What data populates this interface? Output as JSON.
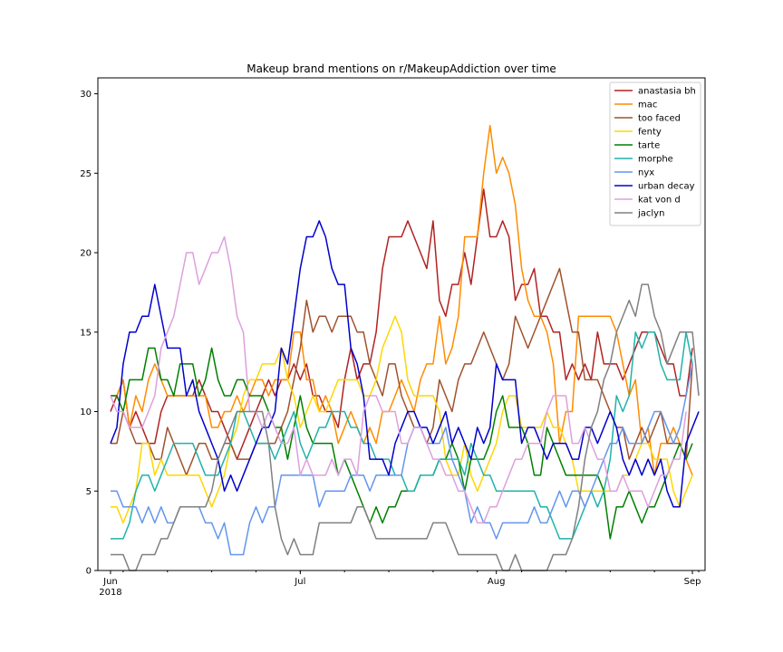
{
  "chart_data": {
    "type": "line",
    "title": "Makeup brand mentions on r/MakeupAddiction over time",
    "xlabel": "",
    "ylabel": "",
    "ylim": [
      0,
      31
    ],
    "xlim": [
      "2018-05-30",
      "2018-09-03"
    ],
    "x_start": "2018-06-01",
    "x_step_days": 1,
    "x_ticks": [
      {
        "date": "2018-06-01",
        "label": "Jun",
        "sublabel": "2018"
      },
      {
        "date": "2018-07-01",
        "label": "Jul",
        "sublabel": ""
      },
      {
        "date": "2018-08-01",
        "label": "Aug",
        "sublabel": ""
      },
      {
        "date": "2018-09-01",
        "label": "Sep",
        "sublabel": ""
      }
    ],
    "y_ticks": [
      0,
      5,
      10,
      15,
      20,
      25,
      30
    ],
    "grid": false,
    "legend_position": "top-right",
    "series": [
      {
        "name": "anastasia bh",
        "color": "#b22222",
        "values": [
          10,
          11,
          12,
          9,
          10,
          9,
          8,
          8,
          10,
          11,
          11,
          11,
          11,
          11,
          12,
          11,
          10,
          10,
          9,
          8,
          7,
          8,
          9,
          10,
          11,
          12,
          11,
          12,
          12,
          13,
          12,
          13,
          11,
          11,
          10,
          10,
          9,
          12,
          14,
          12,
          13,
          13,
          15,
          19,
          21,
          21,
          21,
          22,
          21,
          20,
          19,
          22,
          17,
          16,
          18,
          18,
          20,
          18,
          21,
          24,
          21,
          21,
          22,
          21,
          17,
          18,
          18,
          19,
          16,
          16,
          15,
          15,
          12,
          13,
          12,
          13,
          12,
          15,
          13,
          13,
          13,
          12,
          13,
          14,
          15,
          15,
          15,
          14,
          13,
          13,
          11,
          11,
          14
        ]
      },
      {
        "name": "mac",
        "color": "#ff8c00",
        "values": [
          11,
          11,
          12,
          9,
          11,
          10,
          12,
          13,
          12,
          11,
          11,
          11,
          11,
          11,
          11,
          11,
          9,
          9,
          10,
          10,
          11,
          10,
          11,
          12,
          12,
          11,
          12,
          12,
          12,
          15,
          15,
          12,
          12,
          10,
          11,
          10,
          8,
          9,
          10,
          9,
          8,
          9,
          8,
          10,
          10,
          11,
          12,
          11,
          10,
          12,
          13,
          13,
          16,
          13,
          14,
          16,
          21,
          21,
          21,
          25,
          28,
          25,
          26,
          25,
          23,
          19,
          17,
          16,
          16,
          15,
          13,
          8,
          10,
          10,
          16,
          16,
          16,
          16,
          16,
          16,
          15,
          13,
          11,
          12,
          8,
          9,
          6,
          8,
          8,
          9,
          8,
          7,
          6
        ]
      },
      {
        "name": "too faced",
        "color": "#a0522d",
        "values": [
          8,
          8,
          10,
          9,
          8,
          8,
          8,
          7,
          7,
          9,
          8,
          7,
          6,
          7,
          8,
          8,
          7,
          7,
          8,
          8,
          7,
          7,
          7,
          8,
          8,
          8,
          8,
          9,
          10,
          12,
          14,
          17,
          15,
          16,
          16,
          15,
          16,
          16,
          16,
          15,
          15,
          13,
          12,
          11,
          13,
          13,
          11,
          10,
          9,
          9,
          8,
          9,
          12,
          11,
          10,
          12,
          13,
          13,
          14,
          15,
          14,
          13,
          12,
          13,
          16,
          15,
          14,
          15,
          16,
          17,
          18,
          19,
          17,
          15,
          15,
          12,
          12,
          12,
          11,
          10,
          9,
          9,
          7,
          8,
          9,
          8,
          9,
          10,
          8,
          8,
          8,
          7,
          13
        ]
      },
      {
        "name": "fenty",
        "color": "#ffd700",
        "values": [
          4,
          4,
          3,
          4,
          5,
          8,
          8,
          6,
          7,
          6,
          6,
          6,
          6,
          6,
          6,
          5,
          4,
          5,
          6,
          8,
          9,
          11,
          12,
          12,
          13,
          13,
          13,
          14,
          12,
          11,
          9,
          10,
          11,
          10,
          10,
          11,
          12,
          12,
          12,
          12,
          11,
          11,
          12,
          14,
          15,
          16,
          15,
          12,
          11,
          11,
          11,
          11,
          10,
          7,
          6,
          6,
          8,
          6,
          5,
          6,
          7,
          8,
          10,
          11,
          11,
          9,
          9,
          9,
          9,
          10,
          9,
          9,
          8,
          7,
          5,
          5,
          5,
          5,
          5,
          5,
          5,
          6,
          6,
          7,
          8,
          8,
          7,
          7,
          7,
          5,
          4,
          5,
          6
        ]
      },
      {
        "name": "tarte",
        "color": "#008000",
        "values": [
          11,
          11,
          10,
          12,
          12,
          12,
          14,
          14,
          12,
          12,
          11,
          13,
          13,
          13,
          11,
          12,
          14,
          12,
          11,
          11,
          12,
          12,
          11,
          11,
          11,
          10,
          9,
          9,
          7,
          9,
          11,
          9,
          8,
          8,
          8,
          8,
          6,
          7,
          6,
          5,
          4,
          3,
          4,
          3,
          4,
          4,
          5,
          5,
          5,
          6,
          6,
          6,
          7,
          7,
          8,
          7,
          5,
          7,
          7,
          7,
          8,
          10,
          11,
          9,
          9,
          9,
          8,
          6,
          6,
          9,
          8,
          7,
          6,
          6,
          6,
          6,
          6,
          6,
          5,
          2,
          4,
          4,
          5,
          4,
          3,
          4,
          4,
          5,
          6,
          7,
          8,
          7,
          8
        ]
      },
      {
        "name": "morphe",
        "color": "#20b2aa",
        "values": [
          2,
          2,
          2,
          3,
          5,
          6,
          6,
          5,
          6,
          7,
          8,
          8,
          8,
          8,
          7,
          6,
          6,
          6,
          7,
          8,
          10,
          10,
          9,
          8,
          8,
          8,
          7,
          8,
          9,
          10,
          8,
          7,
          8,
          9,
          9,
          10,
          10,
          10,
          9,
          9,
          8,
          8,
          7,
          7,
          7,
          6,
          6,
          5,
          5,
          6,
          6,
          6,
          7,
          7,
          7,
          7,
          6,
          8,
          7,
          6,
          6,
          5,
          5,
          5,
          5,
          5,
          5,
          5,
          4,
          4,
          3,
          2,
          2,
          2,
          3,
          4,
          5,
          4,
          5,
          7,
          11,
          10,
          11,
          15,
          14,
          15,
          15,
          13,
          12,
          12,
          12,
          15,
          13
        ]
      },
      {
        "name": "nyx",
        "color": "#6495ed",
        "values": [
          5,
          5,
          4,
          4,
          4,
          3,
          4,
          3,
          4,
          3,
          3,
          4,
          4,
          4,
          4,
          3,
          3,
          2,
          3,
          1,
          1,
          1,
          3,
          4,
          3,
          4,
          4,
          6,
          6,
          6,
          6,
          6,
          6,
          4,
          5,
          5,
          5,
          5,
          6,
          6,
          6,
          5,
          6,
          6,
          6,
          6,
          6,
          8,
          9,
          9,
          8,
          8,
          8,
          9,
          7,
          6,
          5,
          3,
          4,
          3,
          3,
          2,
          3,
          3,
          3,
          3,
          3,
          4,
          3,
          3,
          4,
          5,
          4,
          5,
          5,
          4,
          5,
          6,
          7,
          8,
          8,
          9,
          8,
          8,
          8,
          9,
          10,
          10,
          9,
          8,
          9,
          11,
          13
        ]
      },
      {
        "name": "urban decay",
        "color": "#0000cd",
        "values": [
          8,
          9,
          13,
          15,
          15,
          16,
          16,
          18,
          16,
          14,
          14,
          14,
          11,
          12,
          10,
          9,
          8,
          7,
          5,
          6,
          5,
          6,
          7,
          8,
          9,
          9,
          10,
          14,
          13,
          16,
          19,
          21,
          21,
          22,
          21,
          19,
          18,
          18,
          14,
          13,
          11,
          7,
          7,
          7,
          6,
          8,
          9,
          10,
          10,
          9,
          9,
          8,
          9,
          10,
          8,
          9,
          8,
          7,
          9,
          8,
          9,
          13,
          12,
          12,
          12,
          8,
          9,
          9,
          8,
          7,
          8,
          8,
          8,
          7,
          7,
          9,
          9,
          8,
          9,
          10,
          9,
          7,
          6,
          7,
          6,
          7,
          6,
          7,
          5,
          4,
          4,
          8,
          9,
          10
        ]
      },
      {
        "name": "kat von d",
        "color": "#dda0dd",
        "values": [
          11,
          10,
          10,
          9,
          9,
          9,
          10,
          11,
          14,
          15,
          16,
          18,
          20,
          20,
          18,
          19,
          20,
          20,
          21,
          19,
          16,
          15,
          10,
          10,
          9,
          10,
          9,
          8,
          8,
          9,
          6,
          7,
          6,
          6,
          6,
          7,
          6,
          7,
          7,
          6,
          10,
          11,
          11,
          10,
          10,
          10,
          8,
          8,
          9,
          9,
          8,
          7,
          7,
          6,
          6,
          5,
          5,
          4,
          3,
          3,
          4,
          4,
          5,
          6,
          7,
          7,
          8,
          8,
          8,
          10,
          11,
          11,
          11,
          8,
          8,
          9,
          8,
          7,
          7,
          5,
          5,
          6,
          5,
          5,
          5,
          4,
          5,
          6,
          6,
          7,
          7,
          10
        ]
      },
      {
        "name": "jaclyn",
        "color": "#808080",
        "values": [
          1,
          1,
          1,
          0,
          0,
          1,
          1,
          1,
          2,
          2,
          3,
          4,
          4,
          4,
          4,
          4,
          5,
          7,
          8,
          9,
          10,
          10,
          10,
          10,
          10,
          8,
          4,
          2,
          1,
          2,
          1,
          1,
          1,
          3,
          3,
          3,
          3,
          3,
          3,
          4,
          4,
          3,
          2,
          2,
          2,
          2,
          2,
          2,
          2,
          2,
          2,
          3,
          3,
          3,
          2,
          1,
          1,
          1,
          1,
          1,
          1,
          1,
          0,
          0,
          1,
          0,
          0,
          0,
          0,
          0,
          1,
          1,
          1,
          2,
          4,
          7,
          9,
          10,
          12,
          13,
          15,
          16,
          17,
          16,
          18,
          18,
          16,
          15,
          13,
          14,
          15,
          15,
          15,
          11
        ]
      }
    ]
  }
}
